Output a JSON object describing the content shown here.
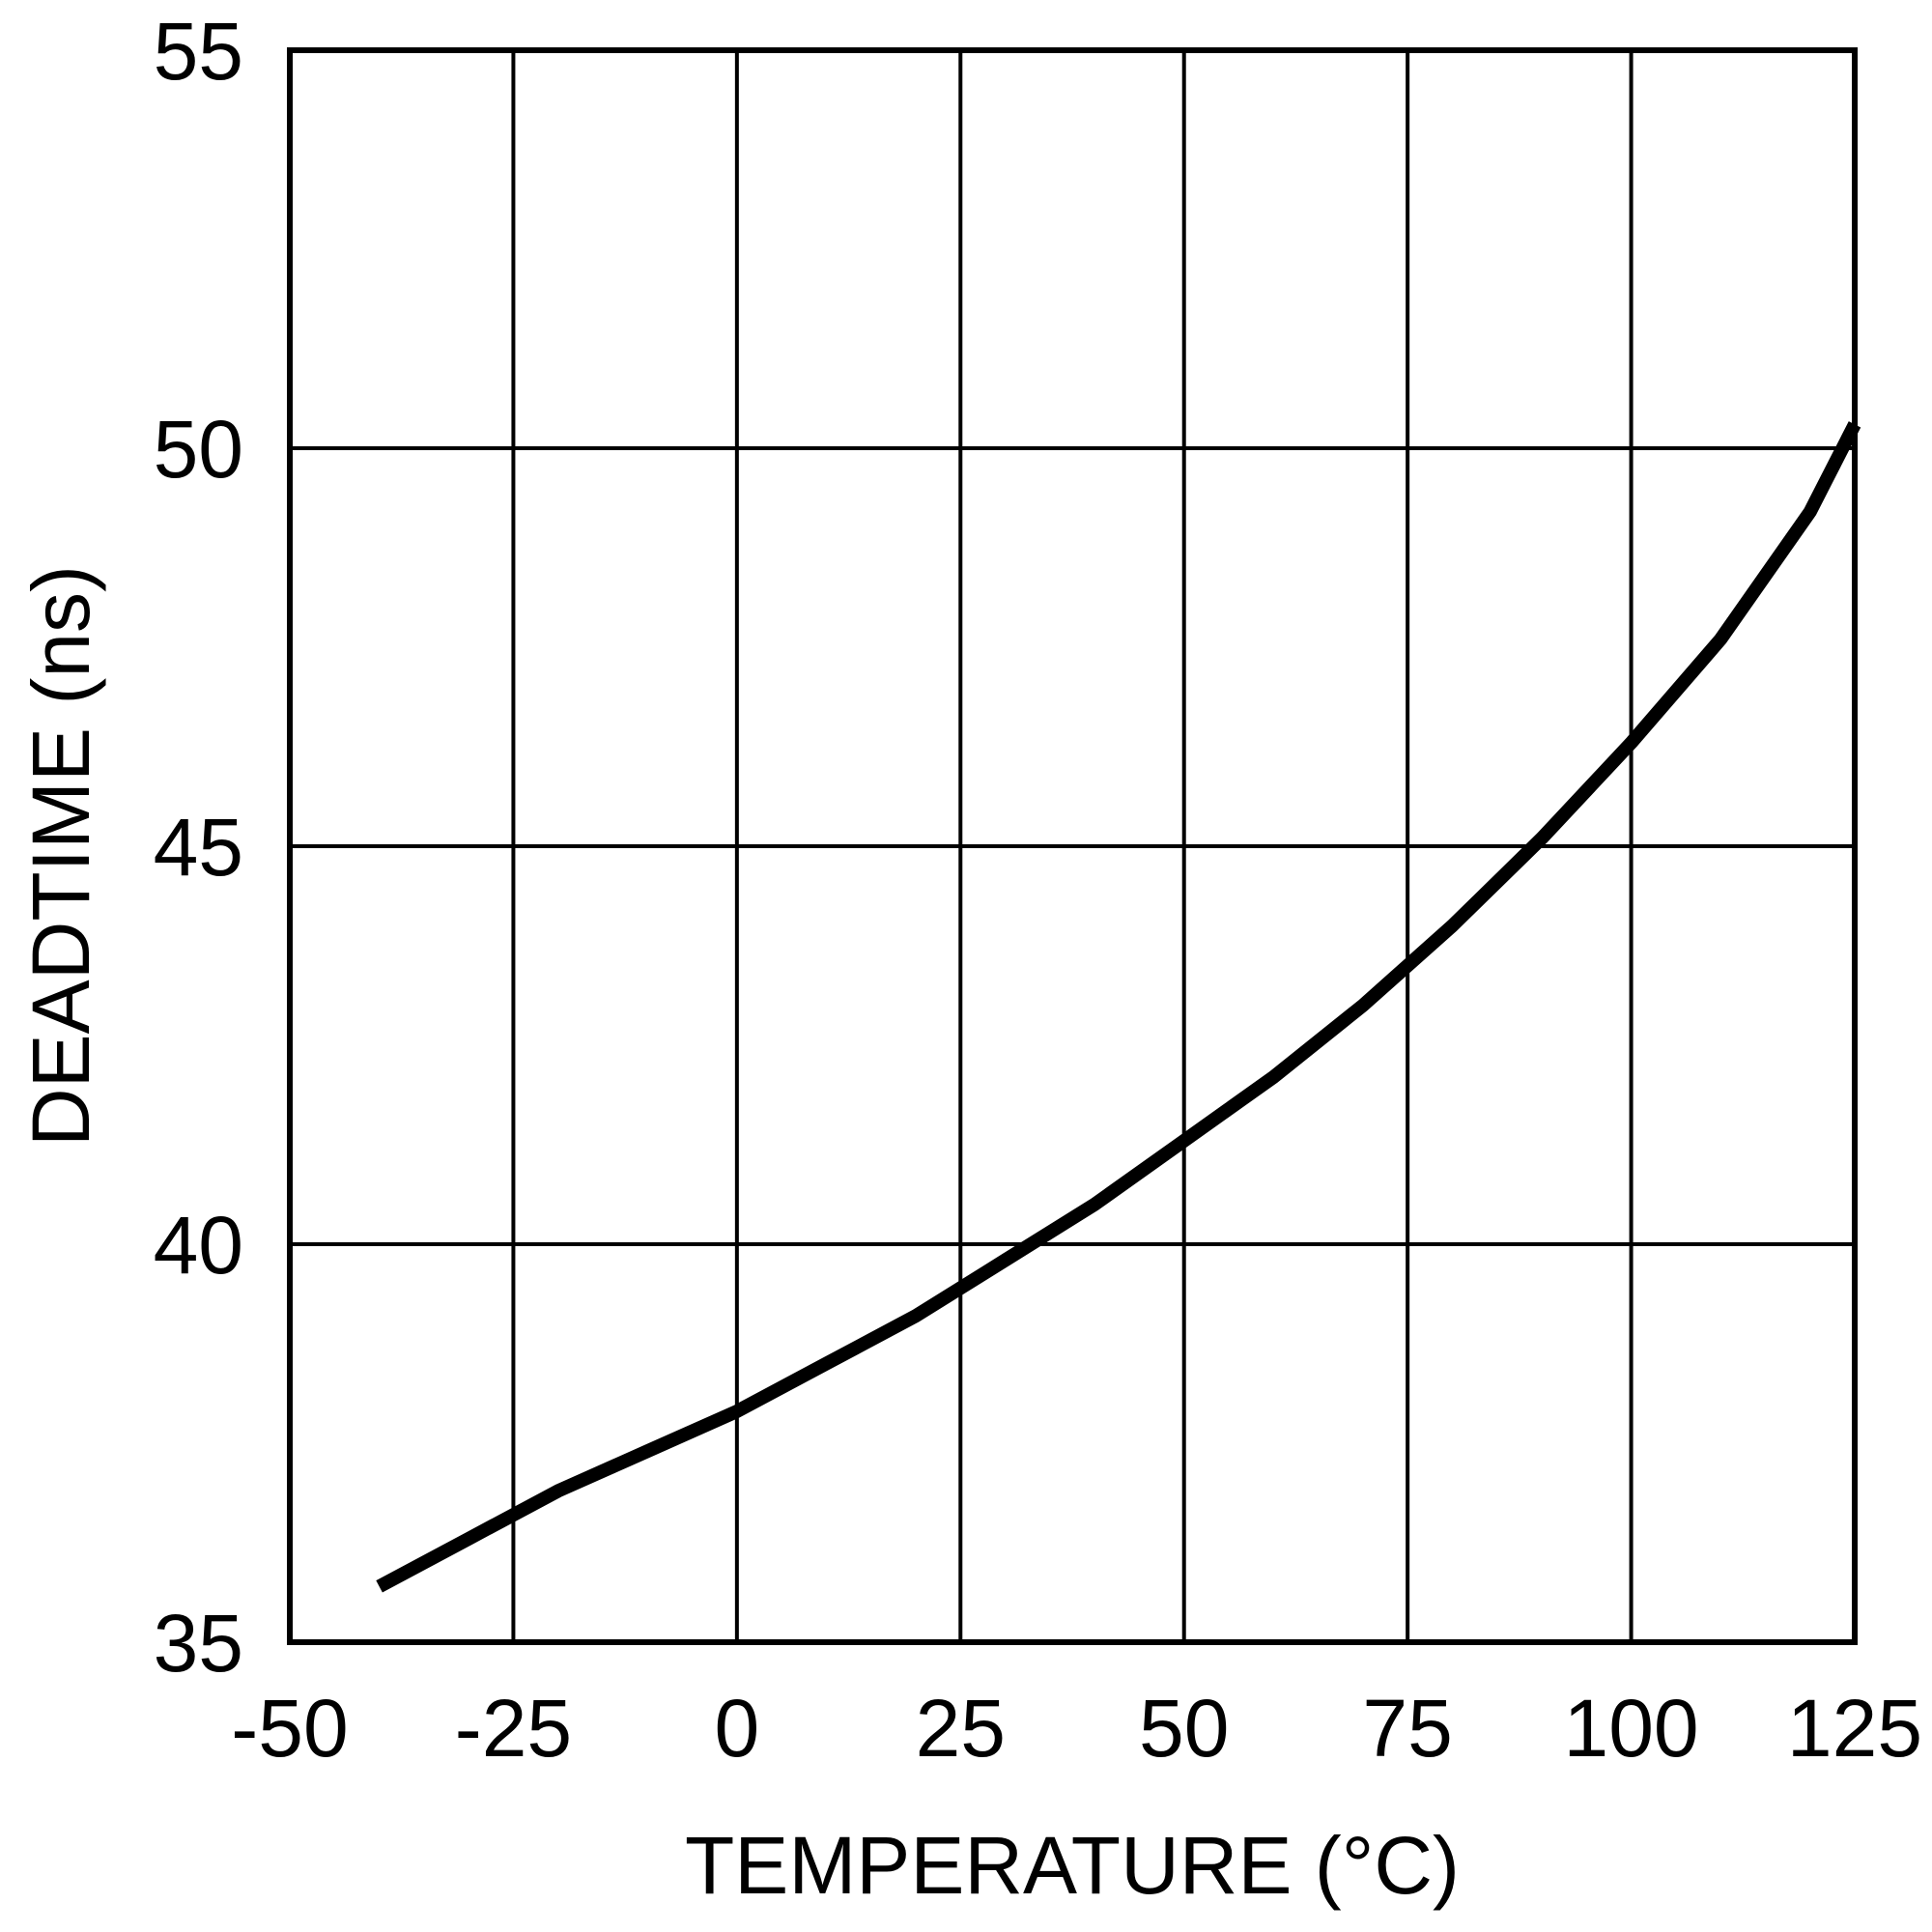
{
  "chart_data": {
    "type": "line",
    "title": "",
    "xlabel": "TEMPERATURE (°C)",
    "ylabel": "DEADTIME (ns)",
    "xlim": [
      -50,
      125
    ],
    "ylim": [
      35,
      55
    ],
    "xticks": [
      -50,
      -25,
      0,
      25,
      50,
      75,
      100,
      125
    ],
    "yticks": [
      35,
      40,
      45,
      50,
      55
    ],
    "grid": true,
    "legend": "none",
    "line_color": "#000000",
    "series": [
      {
        "x": [
          -40,
          -30,
          -20,
          -10,
          0,
          10,
          20,
          30,
          40,
          50,
          60,
          70,
          80,
          90,
          100,
          110,
          120,
          125
        ],
        "y": [
          35.7,
          36.3,
          36.9,
          37.4,
          37.9,
          38.5,
          39.1,
          39.8,
          40.5,
          41.3,
          42.1,
          43.0,
          44.0,
          45.1,
          46.3,
          47.6,
          49.2,
          50.3
        ]
      }
    ]
  }
}
